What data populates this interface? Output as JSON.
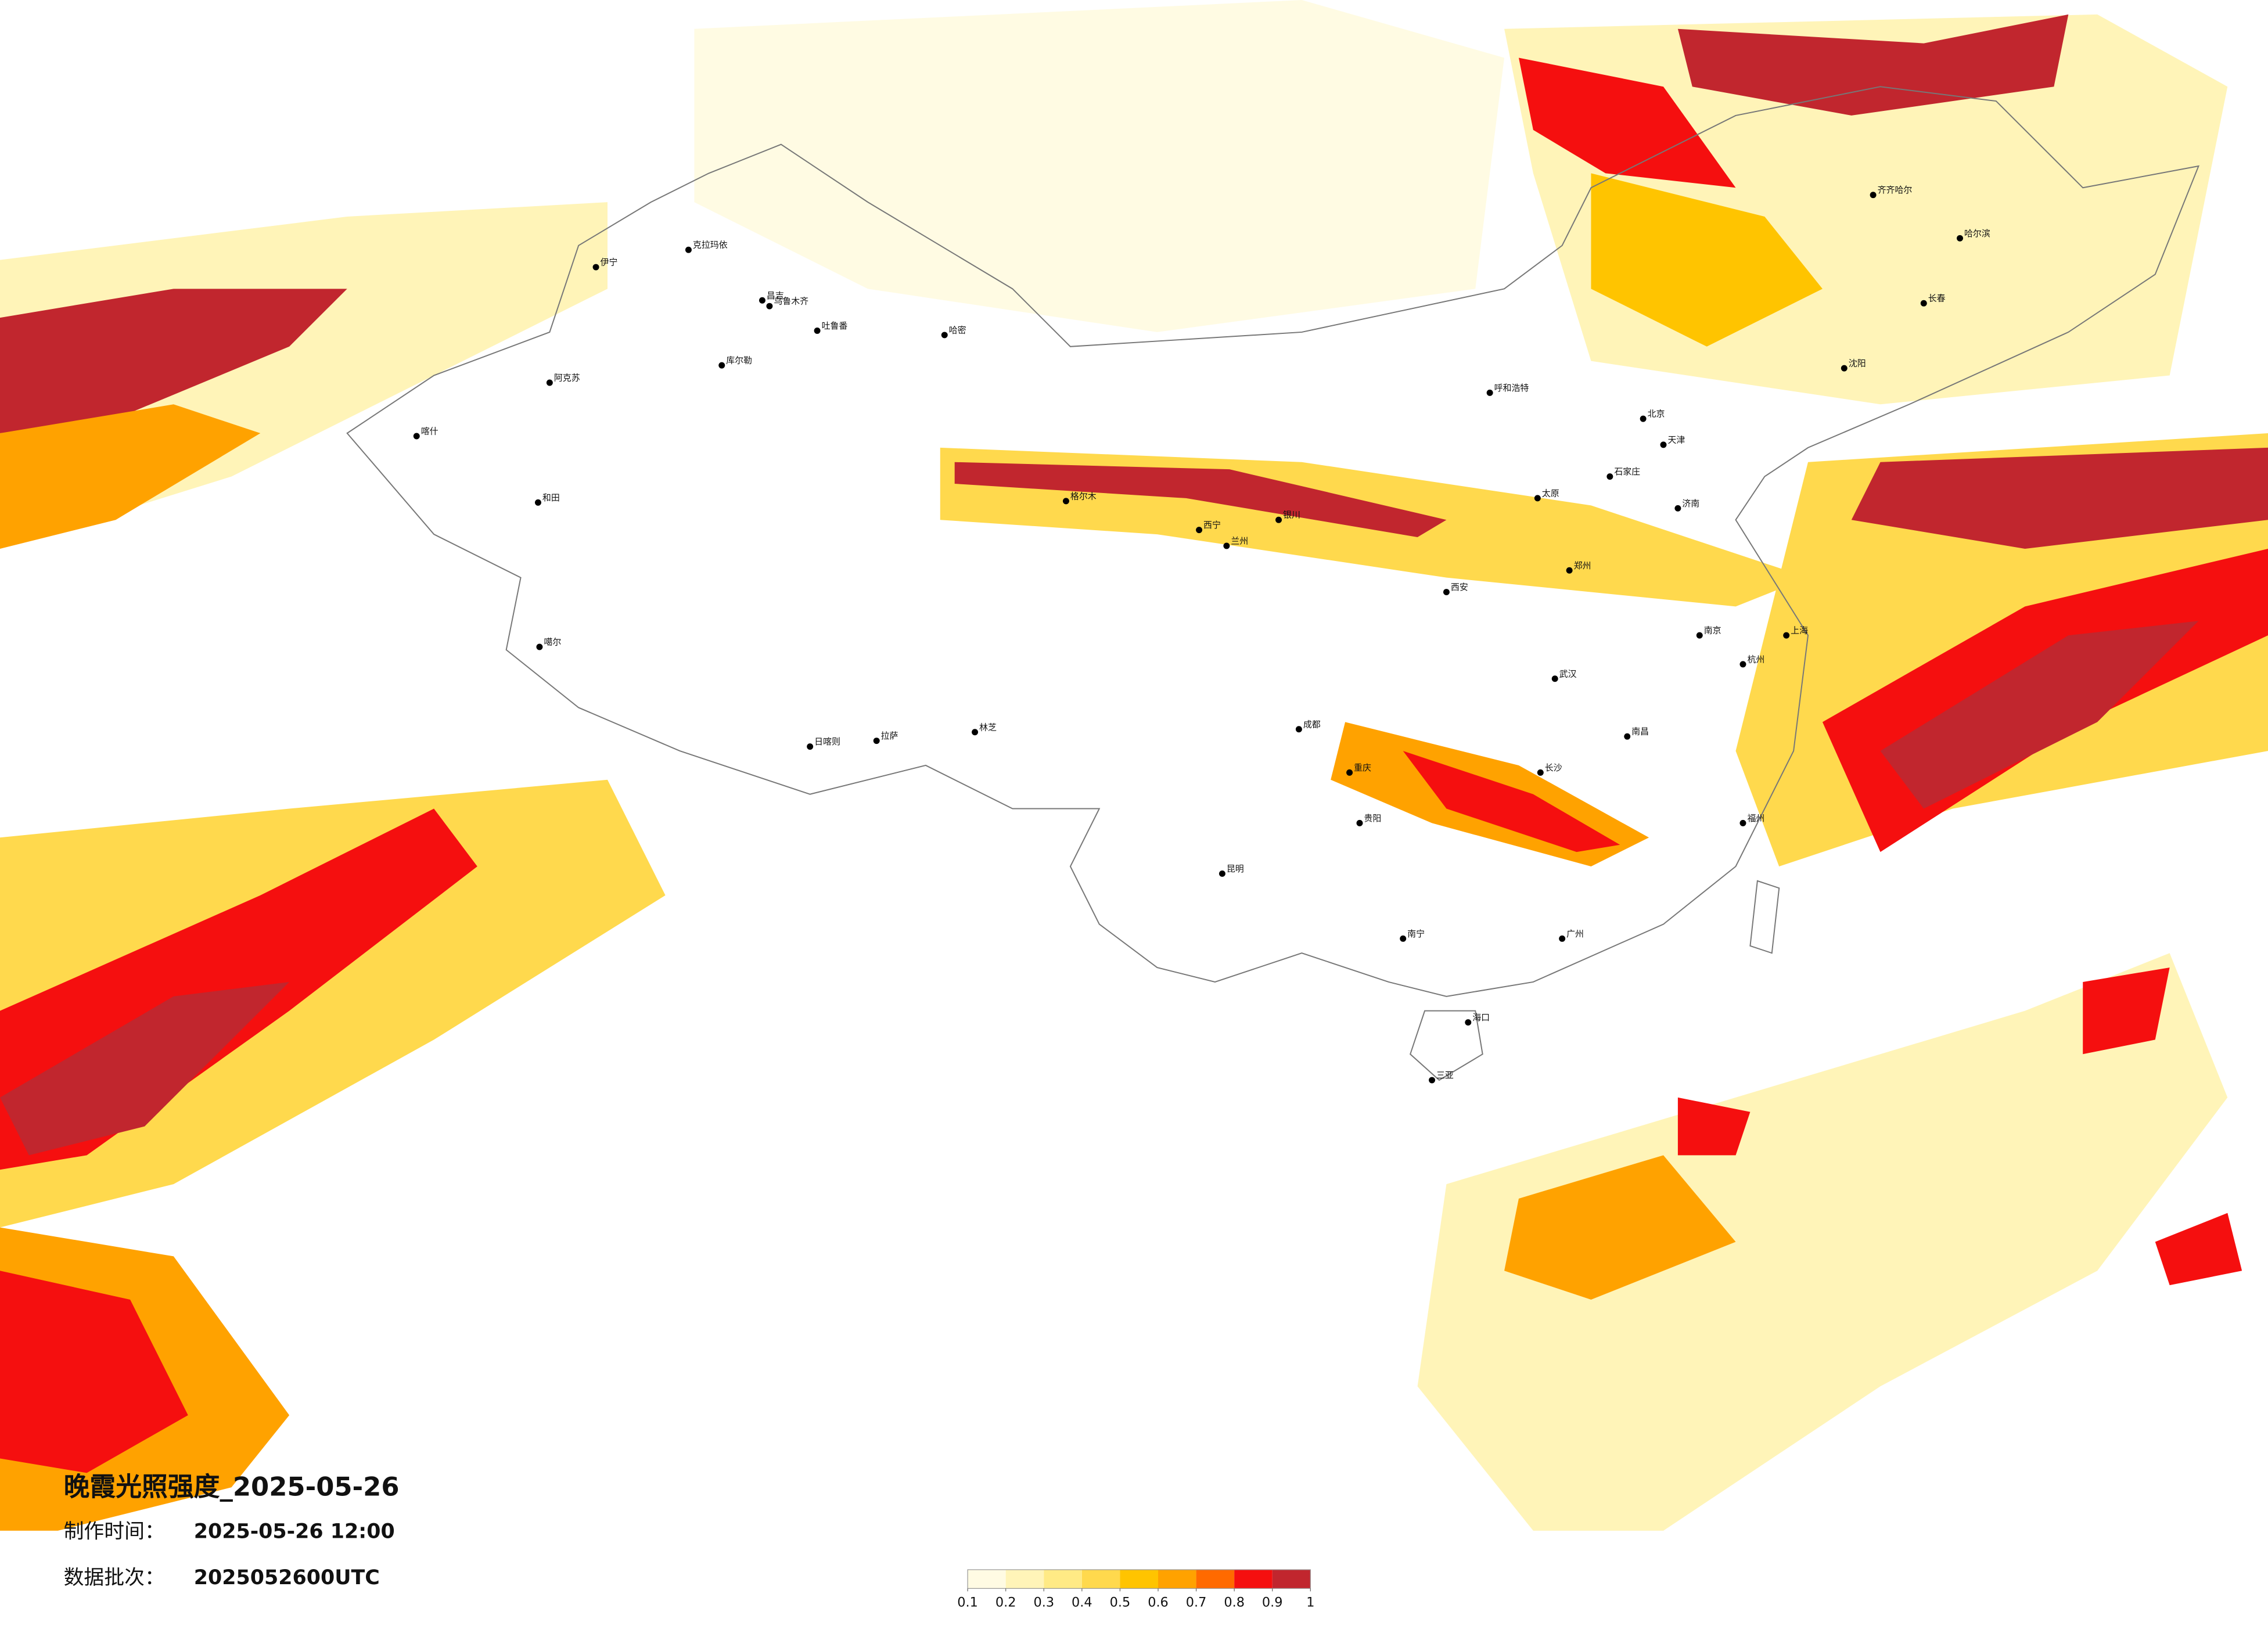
{
  "header": {
    "title": "晚霞光照强度_2025-05-26",
    "made_label": "制作时间：",
    "made_time": "2025-05-26 12:00",
    "batch_label": "数据批次：",
    "batch": "2025052600UTC"
  },
  "colorbar": {
    "ticks": [
      0.1,
      0.2,
      0.3,
      0.4,
      0.5,
      0.6,
      0.7,
      0.8,
      0.9,
      1
    ],
    "colors": [
      "#fffbe3",
      "#fff4b8",
      "#ffea85",
      "#ffd94d",
      "#ffc400",
      "#ffa200",
      "#ff6a00",
      "#f50f0f",
      "#c1262e"
    ]
  },
  "cities": [
    "克拉玛依",
    "伊宁",
    "昌吉",
    "乌鲁木齐",
    "吐鲁番",
    "哈密",
    "库尔勒",
    "阿克苏",
    "喀什",
    "和田",
    "格尔木",
    "噶尔",
    "日喀则",
    "拉萨",
    "林芝",
    "西宁",
    "兰州",
    "银川",
    "呼和浩特",
    "北京",
    "天津",
    "石家庄",
    "太原",
    "济南",
    "郑州",
    "西安",
    "成都",
    "重庆",
    "武汉",
    "长沙",
    "南昌",
    "贵阳",
    "昆明",
    "南宁",
    "广州",
    "海口",
    "三亚",
    "福州",
    "杭州",
    "上海",
    "南京",
    "哈尔滨",
    "长春",
    "沈阳",
    "齐齐哈尔"
  ]
}
